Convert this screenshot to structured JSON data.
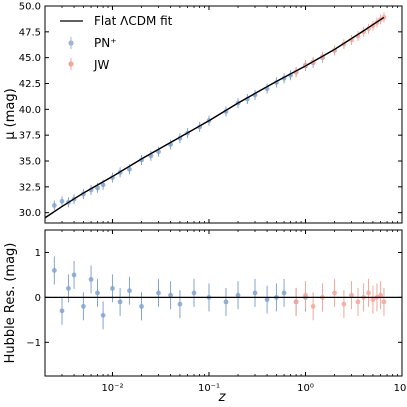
{
  "chart_data": [
    {
      "type": "scatter",
      "panel": "hubble-diagram",
      "title": "",
      "xlabel": "",
      "ylabel": "μ (mag)",
      "xscale": "log",
      "xlim": [
        0.002,
        10
      ],
      "ylim": [
        29,
        50
      ],
      "x_ticks": [
        0.01,
        0.1,
        1,
        10
      ],
      "y_ticks": [
        30.0,
        32.5,
        35.0,
        37.5,
        40.0,
        42.5,
        45.0,
        47.5,
        50.0
      ],
      "y_tick_labels": [
        "30.0",
        "32.5",
        "35.0",
        "37.5",
        "40.0",
        "42.5",
        "45.0",
        "47.5",
        "50.0"
      ],
      "grid": false,
      "legend_position": "upper-left",
      "series": [
        {
          "name": "Flat ΛCDM fit",
          "kind": "line",
          "color": "#000000",
          "x": [
            0.002,
            0.003,
            0.005,
            0.01,
            0.02,
            0.05,
            0.1,
            0.2,
            0.5,
            1.0,
            2.0,
            4.0,
            6.5
          ],
          "y": [
            29.5,
            30.6,
            31.9,
            33.5,
            35.2,
            37.3,
            38.9,
            40.6,
            42.7,
            44.2,
            45.8,
            47.6,
            48.9
          ]
        },
        {
          "name": "PN⁺",
          "kind": "errorbar-scatter",
          "color": "#1f5aa6",
          "x": [
            0.0025,
            0.003,
            0.0035,
            0.004,
            0.005,
            0.006,
            0.007,
            0.008,
            0.01,
            0.012,
            0.015,
            0.02,
            0.025,
            0.03,
            0.04,
            0.05,
            0.06,
            0.08,
            0.1,
            0.15,
            0.2,
            0.25,
            0.3,
            0.4,
            0.5,
            0.6,
            0.7,
            0.8,
            1.0,
            1.2,
            1.5,
            2.0
          ],
          "y": [
            30.7,
            31.1,
            31.0,
            31.3,
            31.8,
            32.2,
            32.4,
            32.7,
            33.4,
            33.9,
            34.2,
            35.1,
            35.5,
            35.9,
            36.6,
            37.2,
            37.7,
            38.3,
            38.9,
            39.8,
            40.6,
            41.0,
            41.4,
            42.0,
            42.6,
            43.0,
            43.3,
            43.6,
            44.2,
            44.5,
            45.0,
            45.7
          ]
        },
        {
          "name": "JW",
          "kind": "errorbar-scatter",
          "color": "#e8604c",
          "x": [
            0.8,
            1.0,
            1.2,
            1.5,
            2.0,
            2.5,
            3.0,
            3.5,
            4.0,
            4.5,
            5.0,
            5.5,
            6.0,
            6.5
          ],
          "y": [
            43.6,
            44.3,
            44.6,
            45.1,
            45.7,
            46.3,
            46.7,
            47.1,
            47.5,
            47.8,
            48.1,
            48.4,
            48.7,
            48.9
          ]
        }
      ]
    },
    {
      "type": "scatter",
      "panel": "hubble-residuals",
      "title": "",
      "xlabel": "z",
      "ylabel": "Hubble Res. (mag)",
      "xscale": "log",
      "xlim": [
        0.002,
        10
      ],
      "ylim": [
        -1.75,
        1.5
      ],
      "x_ticks": [
        0.01,
        0.1,
        1,
        10
      ],
      "x_tick_labels": [
        "10⁻²",
        "10⁻¹",
        "10⁰",
        "10¹"
      ],
      "y_ticks": [
        -1,
        0,
        1
      ],
      "y_tick_labels": [
        "−1",
        "0",
        "1"
      ],
      "grid": false,
      "zero_line": true,
      "series": [
        {
          "name": "PN⁺",
          "kind": "errorbar-scatter",
          "color": "#1f5aa6",
          "x": [
            0.0025,
            0.003,
            0.0035,
            0.004,
            0.005,
            0.006,
            0.007,
            0.008,
            0.01,
            0.012,
            0.015,
            0.02,
            0.03,
            0.04,
            0.05,
            0.07,
            0.1,
            0.15,
            0.2,
            0.3,
            0.4,
            0.5,
            0.6,
            0.8,
            1.0
          ],
          "y": [
            0.6,
            -0.3,
            0.2,
            0.5,
            -0.2,
            0.4,
            0.1,
            -0.4,
            0.2,
            -0.1,
            0.15,
            -0.2,
            0.1,
            0.05,
            -0.15,
            0.1,
            0.0,
            -0.1,
            0.05,
            0.1,
            -0.05,
            0.0,
            0.1,
            -0.1,
            0.0
          ]
        },
        {
          "name": "JW",
          "kind": "errorbar-scatter",
          "color": "#e8604c",
          "x": [
            0.8,
            1.0,
            1.2,
            1.5,
            2.0,
            2.5,
            3.0,
            3.5,
            4.0,
            4.5,
            5.0,
            5.5,
            6.0,
            6.5
          ],
          "y": [
            -0.1,
            0.05,
            -0.2,
            0.0,
            0.1,
            -0.15,
            0.05,
            -0.1,
            0.0,
            0.1,
            -0.05,
            0.0,
            0.05,
            -0.1
          ]
        }
      ]
    }
  ]
}
